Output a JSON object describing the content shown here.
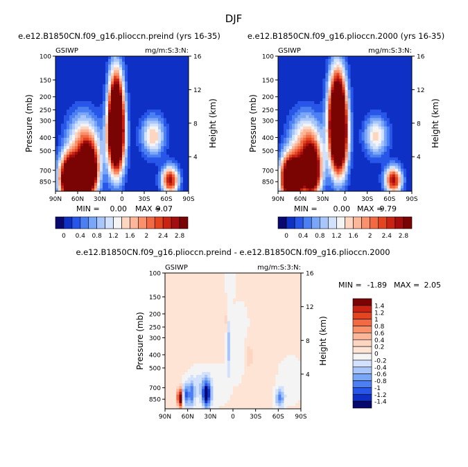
{
  "page": {
    "title": "DJF"
  },
  "chart_data": [
    {
      "type": "heatmap",
      "title": "e.e12.B1850CN.f09_g16.plioccn.preind (yrs 16-35)",
      "left_label": "GSIWP",
      "right_label": "mg/m:S:3:N:",
      "ylabel": "Pressure (mb)",
      "ylabel_right": "Height (km)",
      "xticks": [
        "90N",
        "60N",
        "30N",
        "0",
        "30S",
        "60S",
        "90S"
      ],
      "xlim": [
        90,
        -90
      ],
      "yticks": [
        "100",
        "150",
        "200",
        "250",
        "300",
        "400",
        "500",
        "700",
        "850"
      ],
      "ylim": [
        100,
        1000
      ],
      "yscale": "log",
      "height_ticks": [
        "4",
        "8",
        "12",
        "16"
      ],
      "min_label": "MIN =",
      "min_value": "0.00",
      "max_label": "MAX =",
      "max_value": "9.07",
      "features": [
        {
          "lat": 70,
          "p": 810,
          "peak": 5.0,
          "wlat": 10,
          "wlogp": 0.12
        },
        {
          "lat": 45,
          "p": 720,
          "peak": 4.5,
          "wlat": 9,
          "wlogp": 0.13
        },
        {
          "lat": 52,
          "p": 430,
          "peak": 1.7,
          "wlat": 15,
          "wlogp": 0.15
        },
        {
          "lat": 8,
          "p": 255,
          "peak": 4.2,
          "wlat": 7,
          "wlogp": 0.22
        },
        {
          "lat": 8,
          "p": 430,
          "peak": 3.2,
          "wlat": 8,
          "wlogp": 0.18
        },
        {
          "lat": -42,
          "p": 390,
          "peak": 1.6,
          "wlat": 11,
          "wlogp": 0.1
        },
        {
          "lat": -65,
          "p": 830,
          "peak": 2.8,
          "wlat": 8,
          "wlogp": 0.07
        }
      ]
    },
    {
      "type": "heatmap",
      "title": "e.e12.B1850CN.f09_g16.plioccn.2000 (yrs 16-35)",
      "left_label": "GSIWP",
      "right_label": "mg/m:S:3:N:",
      "ylabel": "Pressure (mb)",
      "ylabel_right": "Height (km)",
      "xticks": [
        "90N",
        "60N",
        "30N",
        "0",
        "30S",
        "60S",
        "90S"
      ],
      "xlim": [
        90,
        -90
      ],
      "yticks": [
        "100",
        "150",
        "200",
        "250",
        "300",
        "400",
        "500",
        "700",
        "850"
      ],
      "ylim": [
        100,
        1000
      ],
      "yscale": "log",
      "height_ticks": [
        "4",
        "8",
        "12",
        "16"
      ],
      "min_label": "MIN =",
      "min_value": "0.00",
      "max_label": "MAX =",
      "max_value": "9.79",
      "features": [
        {
          "lat": 72,
          "p": 810,
          "peak": 5.0,
          "wlat": 10,
          "wlogp": 0.12
        },
        {
          "lat": 45,
          "p": 720,
          "peak": 4.2,
          "wlat": 9,
          "wlogp": 0.13
        },
        {
          "lat": 52,
          "p": 430,
          "peak": 1.7,
          "wlat": 15,
          "wlogp": 0.15
        },
        {
          "lat": 10,
          "p": 255,
          "peak": 4.6,
          "wlat": 8,
          "wlogp": 0.22
        },
        {
          "lat": 8,
          "p": 430,
          "peak": 3.4,
          "wlat": 8,
          "wlogp": 0.18
        },
        {
          "lat": -42,
          "p": 390,
          "peak": 1.5,
          "wlat": 11,
          "wlogp": 0.1
        },
        {
          "lat": -65,
          "p": 830,
          "peak": 2.8,
          "wlat": 8,
          "wlogp": 0.07
        }
      ]
    },
    {
      "type": "heatmap",
      "title": "e.e12.B1850CN.f09_g16.plioccn.preind - e.e12.B1850CN.f09_g16.plioccn.2000",
      "left_label": "GSIWP",
      "right_label": "mg/m:S:3:N:",
      "ylabel": "Pressure (mb)",
      "ylabel_right": "Height (km)",
      "xticks": [
        "90N",
        "60N",
        "30N",
        "0",
        "30S",
        "60S",
        "90S"
      ],
      "xlim": [
        90,
        -90
      ],
      "yticks": [
        "100",
        "150",
        "200",
        "250",
        "300",
        "400",
        "500",
        "700",
        "850"
      ],
      "ylim": [
        100,
        1000
      ],
      "yscale": "log",
      "height_ticks": [
        "4",
        "8",
        "12",
        "16"
      ],
      "min_label": "MIN =",
      "min_value": "-1.89",
      "max_label": "MAX =",
      "max_value": "2.05",
      "features": [
        {
          "lat": 0,
          "p": 400,
          "peak": 0.12,
          "wlat": 90,
          "wlogp": 0.5
        },
        {
          "lat": 70,
          "p": 830,
          "peak": 1.8,
          "wlat": 2.5,
          "wlogp": 0.05
        },
        {
          "lat": 63,
          "p": 780,
          "peak": -1.1,
          "wlat": 3,
          "wlogp": 0.06
        },
        {
          "lat": 55,
          "p": 790,
          "peak": -0.9,
          "wlat": 3,
          "wlogp": 0.07
        },
        {
          "lat": 35,
          "p": 790,
          "peak": -1.6,
          "wlat": 4,
          "wlogp": 0.07
        },
        {
          "lat": 45,
          "p": 670,
          "peak": -0.35,
          "wlat": 10,
          "wlogp": 0.1
        },
        {
          "lat": 6,
          "p": 340,
          "peak": -0.55,
          "wlat": 2.5,
          "wlogp": 0.15
        },
        {
          "lat": 10,
          "p": 230,
          "peak": 0.3,
          "wlat": 2,
          "wlogp": 0.06
        },
        {
          "lat": 4,
          "p": 110,
          "peak": -0.25,
          "wlat": 4,
          "wlogp": 0.1
        },
        {
          "lat": -10,
          "p": 330,
          "peak": -0.3,
          "wlat": 10,
          "wlogp": 0.2
        },
        {
          "lat": -20,
          "p": 400,
          "peak": 0.3,
          "wlat": 5,
          "wlogp": 0.1
        },
        {
          "lat": -62,
          "p": 840,
          "peak": -0.9,
          "wlat": 4,
          "wlogp": 0.05
        },
        {
          "lat": -75,
          "p": 600,
          "peak": -0.25,
          "wlat": 12,
          "wlogp": 0.12
        },
        {
          "lat": 20,
          "p": 650,
          "peak": -0.25,
          "wlat": 12,
          "wlogp": 0.12
        }
      ]
    }
  ],
  "colorbars": {
    "absolute": {
      "labels": [
        "0",
        "0.4",
        "0.8",
        "1.2",
        "1.6",
        "2",
        "2.4",
        "2.8"
      ],
      "levels": [
        0,
        0.2,
        0.4,
        0.6,
        0.8,
        1.0,
        1.2,
        1.4,
        1.6,
        1.8,
        2.0,
        2.2,
        2.4,
        2.6,
        2.8
      ],
      "colors": [
        "#08086e",
        "#0f30c4",
        "#2856e8",
        "#4c80f2",
        "#7aa6f7",
        "#a8c6fa",
        "#d3e2fc",
        "#f4f4f4",
        "#fdd6c2",
        "#fcb69a",
        "#f9916c",
        "#f26a43",
        "#e2451f",
        "#c92313",
        "#a40d10",
        "#7a0403"
      ]
    },
    "difference": {
      "labels": [
        "1.4",
        "1.2",
        "1",
        "0.8",
        "0.6",
        "0.4",
        "0.2",
        "0",
        "-0.2",
        "-0.4",
        "-0.6",
        "-0.8",
        "-1",
        "-1.2",
        "-1.4"
      ],
      "levels": [
        -1.4,
        -1.2,
        -1.0,
        -0.8,
        -0.6,
        -0.4,
        -0.2,
        0,
        0.2,
        0.4,
        0.6,
        0.8,
        1.0,
        1.2,
        1.4
      ],
      "colors": [
        "#08086e",
        "#0f30c4",
        "#2856e8",
        "#4c80f2",
        "#7aa6f7",
        "#a8c6fa",
        "#d3e2fc",
        "#f4f4f4",
        "#fde4d5",
        "#fdd6c2",
        "#fcb69a",
        "#f9916c",
        "#f26a43",
        "#e2451f",
        "#c92313",
        "#7a0403"
      ]
    }
  }
}
